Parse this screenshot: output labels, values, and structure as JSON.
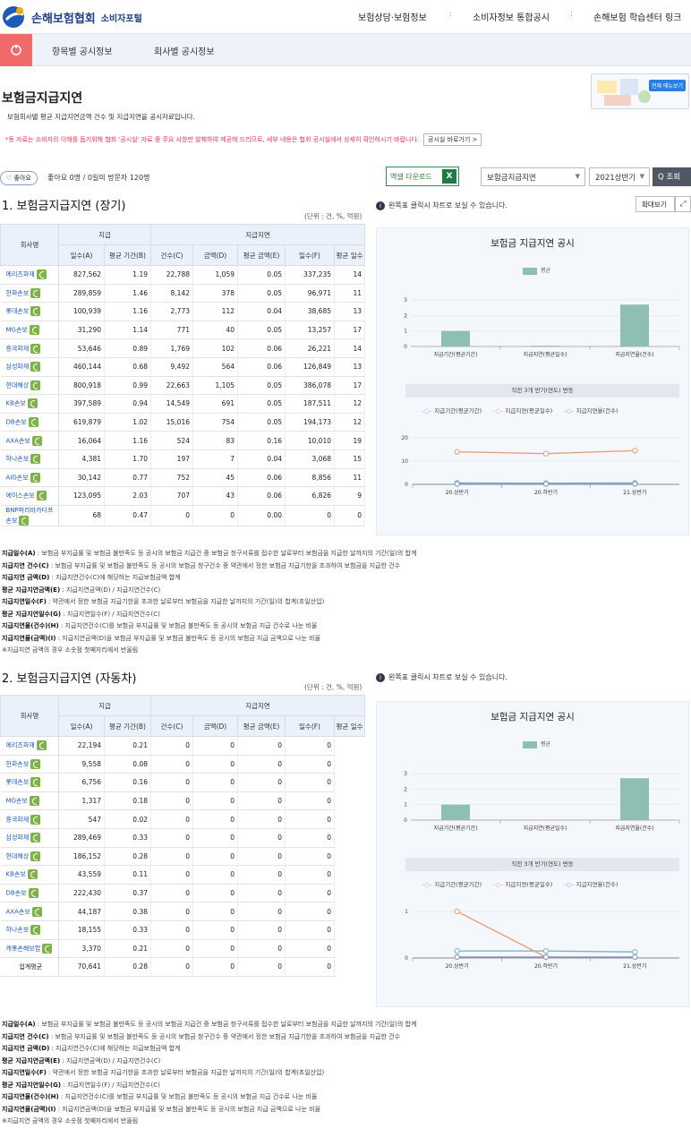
{
  "header": {
    "logo_name": "손해보험협회",
    "logo_sub": "소비자포털",
    "nav": [
      "보험상담·보험정보",
      "소비자정보 통합공시",
      "손해보험 학습센터 링크"
    ]
  },
  "subnav": {
    "tabs": [
      "항목별 공시정보",
      "회사별 공시정보"
    ]
  },
  "page": {
    "title": "보험금지급지연",
    "desc": "보험회사별 평균 지급지연금액 건수 및 지급지연을 공시자료입니다.",
    "note": "*동 자료는 소비자의 이해를 돕기위해 협회 '공시실' 자료 중 주요 사항만 발췌하여 제공해 드리므로, 세부 내용은 협회 공시실에서 상세히 확인하시기 바랍니다.",
    "note_btn": "공시실 바로가기 >",
    "menu_tag": "전체 메뉴보기"
  },
  "toolbar": {
    "like": "♡ 좋아요",
    "like_count": "좋아요 0명 / 0일의 방문자 120명",
    "excel": "엑셀 다운로드",
    "excel_icon": "X",
    "select1": "보험금지급지연",
    "select2": "2021상반기",
    "search": "Q 조회"
  },
  "section1": {
    "title": "1. 보험금지급지연 (장기)",
    "unit": "(단위 : 건, %, 억원)",
    "info": "왼쪽표 클릭시 차트로 보실 수 있습니다.",
    "zoom": "확대보기"
  },
  "section2": {
    "title": "2. 보험금지급지연 (자동차)",
    "unit": "(단위 : 건, %, 억원)",
    "info": "왼쪽표 클릭시 차트로 보실 수 있습니다."
  },
  "table_head": {
    "company": "회사명",
    "group1": "지급",
    "group2": "지급지연",
    "cols": [
      "일수(A)",
      "평균 기간(B)",
      "건수(C)",
      "금액(D)",
      "평균 금액(E)",
      "일수(F)",
      "평균 일수"
    ]
  },
  "table1": [
    [
      "메리츠화재",
      "827,562",
      "1.19",
      "22,788",
      "1,059",
      "0.05",
      "337,235",
      "14"
    ],
    [
      "한화손보",
      "289,859",
      "1.46",
      "8,142",
      "378",
      "0.05",
      "96,971",
      "11"
    ],
    [
      "롯데손보",
      "100,939",
      "1.16",
      "2,773",
      "112",
      "0.04",
      "38,685",
      "13"
    ],
    [
      "MG손보",
      "31,290",
      "1.14",
      "771",
      "40",
      "0.05",
      "13,257",
      "17"
    ],
    [
      "흥국화재",
      "53,646",
      "0.89",
      "1,769",
      "102",
      "0.06",
      "26,221",
      "14"
    ],
    [
      "삼성화재",
      "460,144",
      "0.68",
      "9,492",
      "564",
      "0.06",
      "126,849",
      "13"
    ],
    [
      "현대해상",
      "800,918",
      "0.99",
      "22,663",
      "1,105",
      "0.05",
      "386,078",
      "17"
    ],
    [
      "KB손보",
      "397,589",
      "0.94",
      "14,549",
      "691",
      "0.05",
      "187,511",
      "12"
    ],
    [
      "DB손보",
      "619,879",
      "1.02",
      "15,016",
      "754",
      "0.05",
      "194,173",
      "12"
    ],
    [
      "AXA손보",
      "16,064",
      "1.16",
      "524",
      "83",
      "0.16",
      "10,010",
      "19"
    ],
    [
      "하나손보",
      "4,381",
      "1.70",
      "197",
      "7",
      "0.04",
      "3,068",
      "15"
    ],
    [
      "AIG손보",
      "30,142",
      "0.77",
      "752",
      "45",
      "0.06",
      "8,856",
      "11"
    ],
    [
      "에이스손보",
      "123,095",
      "2.03",
      "707",
      "43",
      "0.06",
      "6,826",
      "9"
    ],
    [
      "BNP파리바카디프손보",
      "68",
      "0.47",
      "0",
      "0",
      "0.00",
      "0",
      "0"
    ]
  ],
  "table2": [
    [
      "메리츠화재",
      "22,194",
      "0.21",
      "0",
      "0",
      "0",
      "0"
    ],
    [
      "한화손보",
      "9,558",
      "0.08",
      "0",
      "0",
      "0",
      "0"
    ],
    [
      "롯데손보",
      "6,756",
      "0.16",
      "0",
      "0",
      "0",
      "0"
    ],
    [
      "MG손보",
      "1,317",
      "0.18",
      "0",
      "0",
      "0",
      "0"
    ],
    [
      "흥국화재",
      "547",
      "0.02",
      "0",
      "0",
      "0",
      "0"
    ],
    [
      "삼성화재",
      "289,469",
      "0.33",
      "0",
      "0",
      "0",
      "0"
    ],
    [
      "현대해상",
      "186,152",
      "0.28",
      "0",
      "0",
      "0",
      "0"
    ],
    [
      "KB손보",
      "43,559",
      "0.11",
      "0",
      "0",
      "0",
      "0"
    ],
    [
      "DB손보",
      "222,430",
      "0.37",
      "0",
      "0",
      "0",
      "0"
    ],
    [
      "AXA손보",
      "44,187",
      "0.38",
      "0",
      "0",
      "0",
      "0"
    ],
    [
      "하나손보",
      "18,155",
      "0.33",
      "0",
      "0",
      "0",
      "0"
    ],
    [
      "캐롯손해보험",
      "3,370",
      "0.21",
      "0",
      "0",
      "0",
      "0"
    ],
    [
      "업계평균",
      "70,641",
      "0.28",
      "0",
      "0",
      "0",
      "0"
    ]
  ],
  "definitions": [
    [
      "지급일수(A)",
      " : 보험금 부지급률 및 보험금 불만족도 등 공시의 보험금 지급건 중 보험금 청구서류를 접수한 날로부터 보험금을 지급한 날까지의 기간(일)의 합계"
    ],
    [
      "지급지연 건수(C)",
      " : 보험금 부지급률 및 보험금 불만족도 등 공시의 보험금 청구건수 중 약관에서 정한 보험금 지급기한을 초과하여 보험금을 지급한 건수"
    ],
    [
      "지급지연 금액(D)",
      " : 지급지연건수(C)에 해당하는 지급보험금액 합계"
    ],
    [
      "평균 지급지연금액(E)",
      " : 지급지연금액(D) / 지급지연건수(C)"
    ],
    [
      "지급지연일수(F)",
      " : 약관에서 정한 보험금 지급기한을 초과한 날로부터 보험금을 지급한 날까지의 기간(일)의 합계(초일산입)"
    ],
    [
      "평균 지급지연일수(G)",
      " : 지급지연일수(F) / 지급지연건수(C)"
    ],
    [
      "지급지연율(건수)(H)",
      " : 지급지연건수(C)를 보험금 부지급률 및 보험금 불만족도 등 공시의 보험금 지급 건수로 나눈 비율"
    ],
    [
      "지급지연율(금액)(I)",
      " : 지급지연금액(D)을 보험금 부지급률 및 보험금 불만족도 등 공시의 보험금 지급 금액으로 나눈 비율"
    ],
    [
      "",
      " ※지급지연 금액의 경우 소숫점 첫째자리에서 반올림"
    ]
  ],
  "chart_data": [
    {
      "type": "bar",
      "title": "보험금 지급지연 공시",
      "legend": [
        "평균"
      ],
      "categories": [
        "지급기간(평균기간)",
        "지급지연(평균일수)",
        "지급지연율(건수)"
      ],
      "values": [
        1.0,
        0.05,
        2.7
      ],
      "ylim": [
        0,
        3
      ],
      "yticks": [
        "0",
        "1",
        "2",
        "3"
      ],
      "color": "#8fbfb4",
      "line": {
        "title": "직전 3개 반기(연도) 변동",
        "type": "line",
        "x": [
          "20.상반기",
          "20.하반기",
          "21.상반기"
        ],
        "ylim": [
          0,
          20
        ],
        "yticks": [
          "0",
          "10",
          "20"
        ],
        "series": [
          {
            "name": "지급기간(평균기간)",
            "values": [
              0.6,
              0.5,
              0.6
            ],
            "color": "#7fb3c9"
          },
          {
            "name": "지급지연(평균일수)",
            "values": [
              14,
              13.2,
              14.5
            ],
            "color": "#e8a27a"
          },
          {
            "name": "지급지연율(건수)",
            "values": [
              0.2,
              0.2,
              0.2
            ],
            "color": "#8a97bf"
          }
        ]
      }
    },
    {
      "type": "bar",
      "title": "보험금 지급지연 공시",
      "legend": [
        "평균"
      ],
      "categories": [
        "지급기간(평균기간)",
        "지급지연(평균일수)",
        "지급지연율(건수)"
      ],
      "values": [
        1.0,
        0.03,
        2.7
      ],
      "ylim": [
        0,
        3
      ],
      "yticks": [
        "0",
        "1",
        "2",
        "3"
      ],
      "color": "#8fbfb4",
      "line": {
        "title": "직전 3개 반기(연도) 변동",
        "type": "line",
        "x": [
          "20.상반기",
          "20.하반기",
          "21.상반기"
        ],
        "ylim": [
          0,
          1
        ],
        "yticks": [
          "0",
          "1"
        ],
        "series": [
          {
            "name": "지급기간(평균기간)",
            "values": [
              0.15,
              0.15,
              0.13
            ],
            "color": "#7fb3c9"
          },
          {
            "name": "지급지연(평균일수)",
            "values": [
              1.0,
              0.02,
              null
            ],
            "color": "#e8a27a"
          },
          {
            "name": "지급지연율(건수)",
            "values": [
              0.02,
              0.02,
              0.02
            ],
            "color": "#8a97bf"
          }
        ]
      }
    }
  ]
}
